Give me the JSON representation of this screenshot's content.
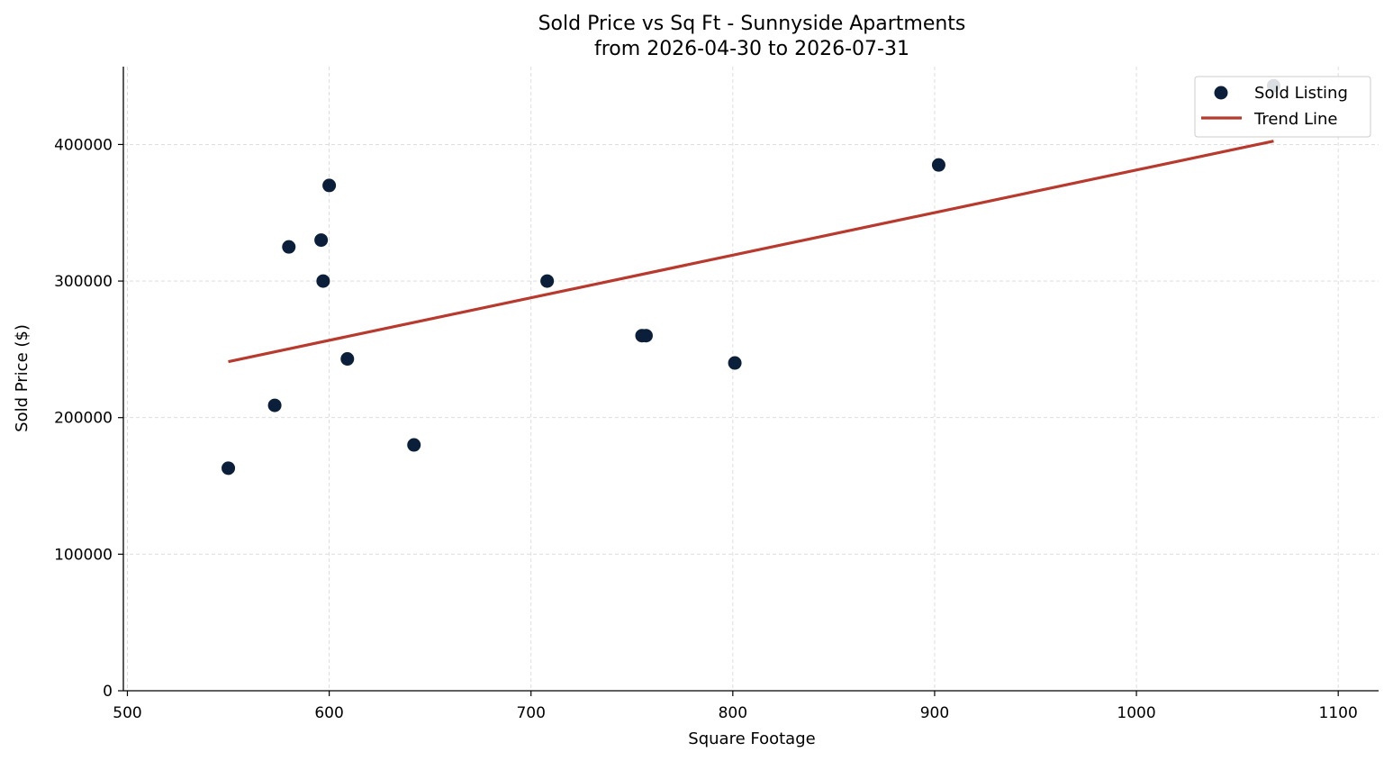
{
  "chart_data": {
    "type": "scatter",
    "title": "Sold Price vs Sq Ft - Sunnyside Apartments",
    "subtitle": "from 2026-04-30 to 2026-07-31",
    "xlabel": "Square Footage",
    "ylabel": "Sold Price ($)",
    "xlim": [
      498,
      1120
    ],
    "ylim": [
      0,
      457000
    ],
    "xticks": [
      500,
      600,
      700,
      800,
      900,
      1000,
      1100
    ],
    "xtick_labels": [
      "500",
      "600",
      "700",
      "800",
      "900",
      "1000",
      "1100"
    ],
    "yticks": [
      0,
      100000,
      200000,
      300000,
      400000
    ],
    "ytick_labels": [
      "0",
      "100000",
      "200000",
      "300000",
      "400000"
    ],
    "grid": true,
    "legend_position": "top-right",
    "series": [
      {
        "name": "Sold Listing",
        "type": "scatter",
        "color": "#0b1f3a",
        "x": [
          550,
          573,
          580,
          596,
          597,
          600,
          609,
          642,
          708,
          755,
          757,
          801,
          902,
          1068
        ],
        "y": [
          163000,
          209000,
          325000,
          330000,
          300000,
          370000,
          243000,
          180000,
          300000,
          260000,
          260000,
          240000,
          385000,
          443000
        ]
      },
      {
        "name": "Trend Line",
        "type": "line",
        "color": "#b83a2e",
        "x": [
          550,
          1068
        ],
        "y": [
          241000,
          402500
        ]
      }
    ]
  }
}
